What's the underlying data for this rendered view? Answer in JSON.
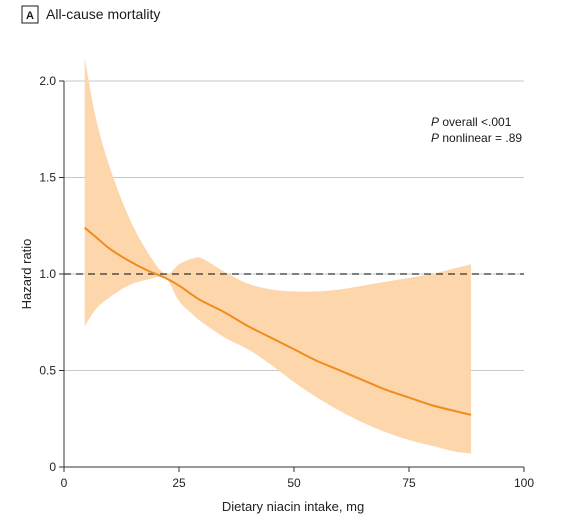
{
  "colors": {
    "line": "#f08c1e",
    "band": "#fdd6ac",
    "grid": "#c8c8c8",
    "reference": "#333333",
    "axis": "#333333"
  },
  "chart_data": {
    "type": "line",
    "panel_letter": "A",
    "title": "All-cause mortality",
    "xlabel": "Dietary niacin intake, mg",
    "ylabel": "Hazard ratio",
    "xlim": [
      0,
      100
    ],
    "ylim": [
      0,
      2.0
    ],
    "x_ticks": [
      0,
      25,
      50,
      75,
      100
    ],
    "x_tick_labels": [
      "0",
      "25",
      "50",
      "75",
      "100"
    ],
    "y_ticks": [
      0,
      0.5,
      1.0,
      1.5,
      2.0
    ],
    "y_tick_labels": [
      "0",
      "0.5",
      "1.0",
      "1.5",
      "2.0"
    ],
    "grid": "horizontal",
    "reference_line": {
      "y": 1.0,
      "style": "dashed"
    },
    "annotations": [
      {
        "italic": "P",
        "text": " overall <.001"
      },
      {
        "italic": "P",
        "text": " nonlinear = .89"
      }
    ],
    "series": [
      {
        "x": [
          4.5,
          7,
          10,
          14,
          18,
          22,
          25,
          28,
          30,
          35,
          40,
          45,
          50,
          55,
          60,
          65,
          70,
          75,
          80,
          85,
          88.5
        ],
        "y": [
          1.24,
          1.19,
          1.13,
          1.07,
          1.02,
          0.98,
          0.94,
          0.89,
          0.86,
          0.8,
          0.73,
          0.67,
          0.61,
          0.55,
          0.5,
          0.45,
          0.4,
          0.36,
          0.32,
          0.29,
          0.27
        ],
        "lower": [
          0.73,
          0.82,
          0.88,
          0.94,
          0.97,
          0.98,
          0.86,
          0.79,
          0.75,
          0.67,
          0.61,
          0.53,
          0.44,
          0.36,
          0.29,
          0.23,
          0.18,
          0.14,
          0.11,
          0.08,
          0.07
        ],
        "upper": [
          2.12,
          1.8,
          1.55,
          1.3,
          1.12,
          1.0,
          1.05,
          1.08,
          1.08,
          1.01,
          0.95,
          0.92,
          0.91,
          0.91,
          0.92,
          0.94,
          0.96,
          0.98,
          1.0,
          1.03,
          1.05
        ]
      }
    ]
  }
}
